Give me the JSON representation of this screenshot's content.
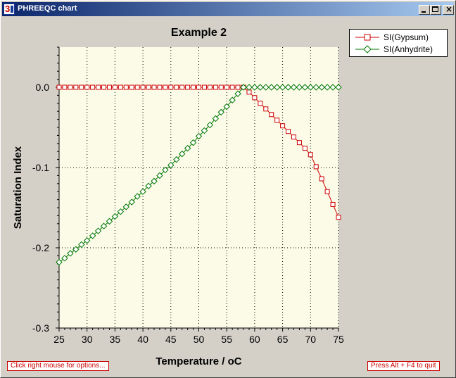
{
  "window": {
    "title": "PHREEQC chart",
    "icon": "phreeqc-app-icon",
    "controls": [
      "minimize-icon",
      "maximize-icon",
      "close-icon"
    ]
  },
  "chart_data": {
    "type": "line",
    "title": "Example 2",
    "xlabel": "Temperature / oC",
    "ylabel": "Saturation Index",
    "xlim": [
      25,
      75
    ],
    "ylim": [
      -0.3,
      0.05
    ],
    "x_ticks": [
      "25",
      "30",
      "35",
      "40",
      "45",
      "50",
      "55",
      "60",
      "65",
      "70",
      "75"
    ],
    "y_ticks": [
      "0.0",
      "-0.1",
      "-0.2",
      "-0.3"
    ],
    "grid": "dotted",
    "legend_position": "top-right",
    "x": [
      25,
      26,
      27,
      28,
      29,
      30,
      31,
      32,
      33,
      34,
      35,
      36,
      37,
      38,
      39,
      40,
      41,
      42,
      43,
      44,
      45,
      46,
      47,
      48,
      49,
      50,
      51,
      52,
      53,
      54,
      55,
      56,
      57,
      58,
      59,
      60,
      61,
      62,
      63,
      64,
      65,
      66,
      67,
      68,
      69,
      70,
      71,
      72,
      73,
      74,
      75
    ],
    "series": [
      {
        "name": "SI(Gypsum)",
        "color": "#cc0000",
        "marker": "square",
        "values": [
          0,
          0,
          0,
          0,
          0,
          0,
          0,
          0,
          0,
          0,
          0,
          0,
          0,
          0,
          0,
          0,
          0,
          0,
          0,
          0,
          0,
          0,
          0,
          0,
          0,
          0,
          0,
          0,
          0,
          0,
          0,
          0,
          0,
          0,
          -0.006,
          -0.013,
          -0.02,
          -0.027,
          -0.034,
          -0.041,
          -0.048,
          -0.055,
          -0.062,
          -0.069,
          -0.076,
          -0.084,
          -0.099,
          -0.114,
          -0.13,
          -0.146,
          -0.162
        ]
      },
      {
        "name": "SI(Anhydrite)",
        "color": "#007700",
        "marker": "diamond",
        "values": [
          -0.218,
          -0.213,
          -0.207,
          -0.202,
          -0.196,
          -0.191,
          -0.185,
          -0.179,
          -0.173,
          -0.167,
          -0.161,
          -0.155,
          -0.149,
          -0.143,
          -0.136,
          -0.13,
          -0.123,
          -0.117,
          -0.11,
          -0.103,
          -0.097,
          -0.09,
          -0.083,
          -0.076,
          -0.069,
          -0.061,
          -0.054,
          -0.047,
          -0.039,
          -0.031,
          -0.024,
          -0.016,
          -0.008,
          0,
          0,
          0,
          0,
          0,
          0,
          0,
          0,
          0,
          0,
          0,
          0,
          0,
          0,
          0,
          0,
          0,
          0
        ]
      }
    ]
  },
  "status": {
    "left_hint": "Click right mouse for options...",
    "right_hint": "Press Alt + F4 to quit"
  }
}
